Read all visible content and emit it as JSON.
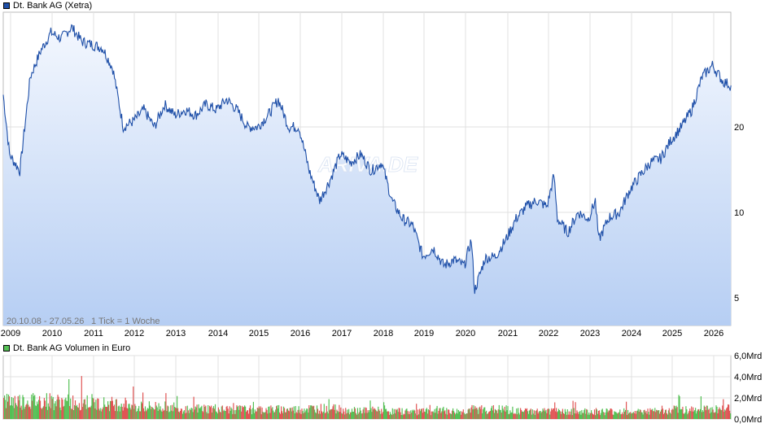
{
  "chart_data": [
    {
      "type": "area",
      "legend": "Dt. Bank AG (Xetra)",
      "date_range": "20.10.08 - 27.05.26",
      "tick_info": "1 Tick = 1 Woche",
      "watermark": "ARIVA.DE",
      "x_ticks": [
        "2009",
        "2010",
        "2011",
        "2012",
        "2013",
        "2014",
        "2015",
        "2016",
        "2017",
        "2018",
        "2019",
        "2020",
        "2021",
        "2022",
        "2023",
        "2024",
        "2025",
        "2026"
      ],
      "y_ticks": [
        "5",
        "10",
        "20"
      ],
      "y_scale": "log",
      "grid": true,
      "colors": {
        "line": "#1e4fa8",
        "fill_top": "#f3f7fe",
        "fill_bottom": "#b6cef3",
        "swatch": "#1e4fa8"
      },
      "x": [
        "2008-10-20",
        "2008-12",
        "2009-03",
        "2009-06",
        "2009-09",
        "2009-12",
        "2010-03",
        "2010-06",
        "2010-09",
        "2010-12",
        "2011-03",
        "2011-06",
        "2011-09",
        "2011-12",
        "2012-03",
        "2012-06",
        "2012-09",
        "2012-12",
        "2013-03",
        "2013-06",
        "2013-09",
        "2013-12",
        "2014-03",
        "2014-06",
        "2014-09",
        "2014-12",
        "2015-03",
        "2015-06",
        "2015-09",
        "2015-12",
        "2016-03",
        "2016-06",
        "2016-09",
        "2016-12",
        "2017-03",
        "2017-06",
        "2017-09",
        "2017-12",
        "2018-03",
        "2018-06",
        "2018-09",
        "2018-12",
        "2019-03",
        "2019-06",
        "2019-09",
        "2019-12",
        "2020-02",
        "2020-03",
        "2020-06",
        "2020-09",
        "2020-12",
        "2021-03",
        "2021-06",
        "2021-09",
        "2021-12",
        "2022-02",
        "2022-03",
        "2022-06",
        "2022-09",
        "2022-12",
        "2023-02",
        "2023-03",
        "2023-06",
        "2023-09",
        "2023-12",
        "2024-03",
        "2024-06",
        "2024-09",
        "2024-12",
        "2025-03",
        "2025-06",
        "2025-09",
        "2025-12",
        "2026-03",
        "2026-05-27"
      ],
      "values": [
        26,
        16,
        14,
        30,
        37,
        43,
        41,
        45,
        40,
        39,
        38,
        32,
        20,
        21,
        23,
        20,
        24,
        22,
        23,
        22,
        24,
        23,
        25,
        23,
        20,
        20,
        22,
        25,
        20,
        20,
        14,
        11,
        13,
        16,
        15,
        16,
        14,
        15,
        11,
        9.5,
        9,
        7,
        7.5,
        6.5,
        6.8,
        6.5,
        8,
        5.3,
        6.9,
        7,
        8,
        9.5,
        10.5,
        11,
        10.5,
        13.5,
        9.5,
        8.5,
        10,
        9.5,
        11,
        8,
        9.6,
        10,
        12,
        13.5,
        15,
        15.5,
        18,
        20,
        23,
        30,
        33,
        29,
        28
      ]
    },
    {
      "type": "bar",
      "legend": "Dt. Bank AG Volumen in Euro",
      "y_ticks": [
        "0,0Mrd",
        "2,0Mrd",
        "4,0Mrd",
        "6,0Mrd"
      ],
      "ylim": [
        0,
        6
      ],
      "unit": "Mrd",
      "colors": {
        "up": "#55c055",
        "down": "#e05555",
        "swatch": "#55c055"
      },
      "years": [
        2009,
        2010,
        2011,
        2012,
        2013,
        2014,
        2015,
        2016,
        2017,
        2018,
        2019,
        2020,
        2021,
        2022,
        2023,
        2024,
        2025,
        2026
      ],
      "avg_volume": [
        1.9,
        1.8,
        1.6,
        1.3,
        1.1,
        1.0,
        1.0,
        1.1,
        0.9,
        0.8,
        0.8,
        1.0,
        0.8,
        0.8,
        0.8,
        0.8,
        1.0,
        1.1
      ],
      "peak_volume": [
        3.0,
        4.5,
        3.2,
        2.7,
        2.4,
        1.8,
        1.8,
        2.2,
        1.8,
        1.6,
        1.4,
        2.4,
        1.4,
        1.8,
        2.0,
        1.3,
        2.3,
        1.9
      ]
    }
  ]
}
